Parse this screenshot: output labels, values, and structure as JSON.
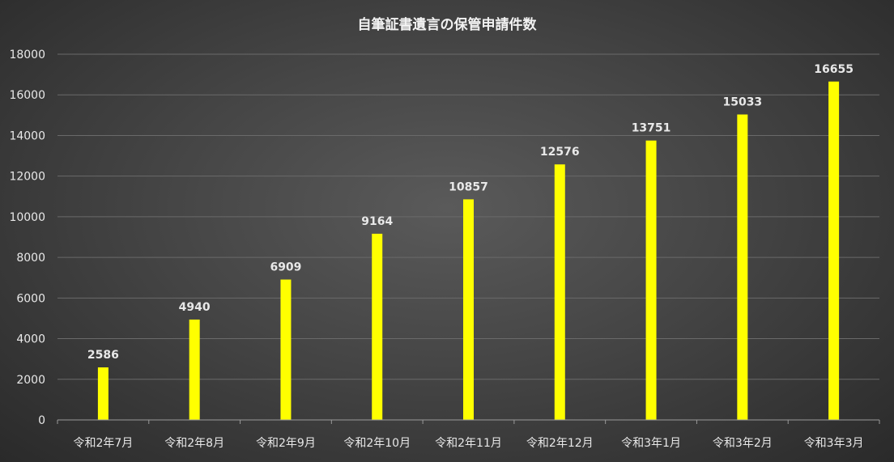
{
  "chart_data": {
    "type": "bar",
    "title": "自筆証書遺言の保管申請件数",
    "categories": [
      "令和2年7月",
      "令和2年8月",
      "令和2年9月",
      "令和2年10月",
      "令和2年11月",
      "令和2年12月",
      "令和3年1月",
      "令和3年2月",
      "令和3年3月"
    ],
    "values": [
      2586,
      4940,
      6909,
      9164,
      10857,
      12576,
      13751,
      15033,
      16655
    ],
    "data_labels": [
      "2586",
      "4940",
      "6909",
      "9164",
      "10857",
      "12576",
      "13751",
      "15033",
      "16655"
    ],
    "y_ticks": [
      "0",
      "2000",
      "4000",
      "6000",
      "8000",
      "10000",
      "12000",
      "14000",
      "16000",
      "18000"
    ],
    "ylim": [
      0,
      18000
    ],
    "grid": true,
    "legend": "none",
    "bar_color": "#ffff00",
    "background": "#444444"
  }
}
